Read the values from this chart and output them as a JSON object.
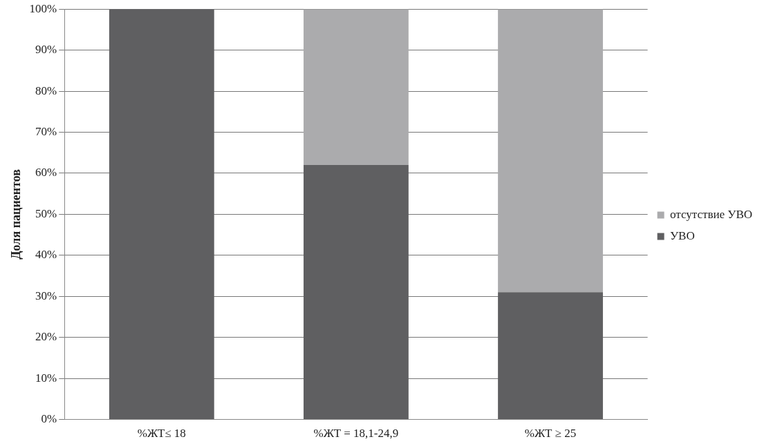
{
  "chart_data": {
    "type": "bar",
    "stacked": true,
    "ylabel": "Доля пациентов",
    "categories": [
      "%ЖТ≤ 18",
      "%ЖТ = 18,1-24,9",
      "%ЖТ ≥ 25"
    ],
    "series": [
      {
        "name": "УВО",
        "color": "#5f5f61",
        "values": [
          100,
          62,
          31
        ]
      },
      {
        "name": "отсутствие УВО",
        "color": "#ababad",
        "values": [
          0,
          38,
          69
        ]
      }
    ],
    "ylim": [
      0,
      100
    ],
    "yticks": [
      {
        "value": 0,
        "label": "0%"
      },
      {
        "value": 10,
        "label": "10%"
      },
      {
        "value": 20,
        "label": "20%"
      },
      {
        "value": 30,
        "label": "30%"
      },
      {
        "value": 40,
        "label": "40%"
      },
      {
        "value": 50,
        "label": "50%"
      },
      {
        "value": 60,
        "label": "60%"
      },
      {
        "value": 70,
        "label": "70%"
      },
      {
        "value": 80,
        "label": "80%"
      },
      {
        "value": 90,
        "label": "90%"
      },
      {
        "value": 100,
        "label": "100%"
      }
    ],
    "grid": "y",
    "legend": "right"
  }
}
